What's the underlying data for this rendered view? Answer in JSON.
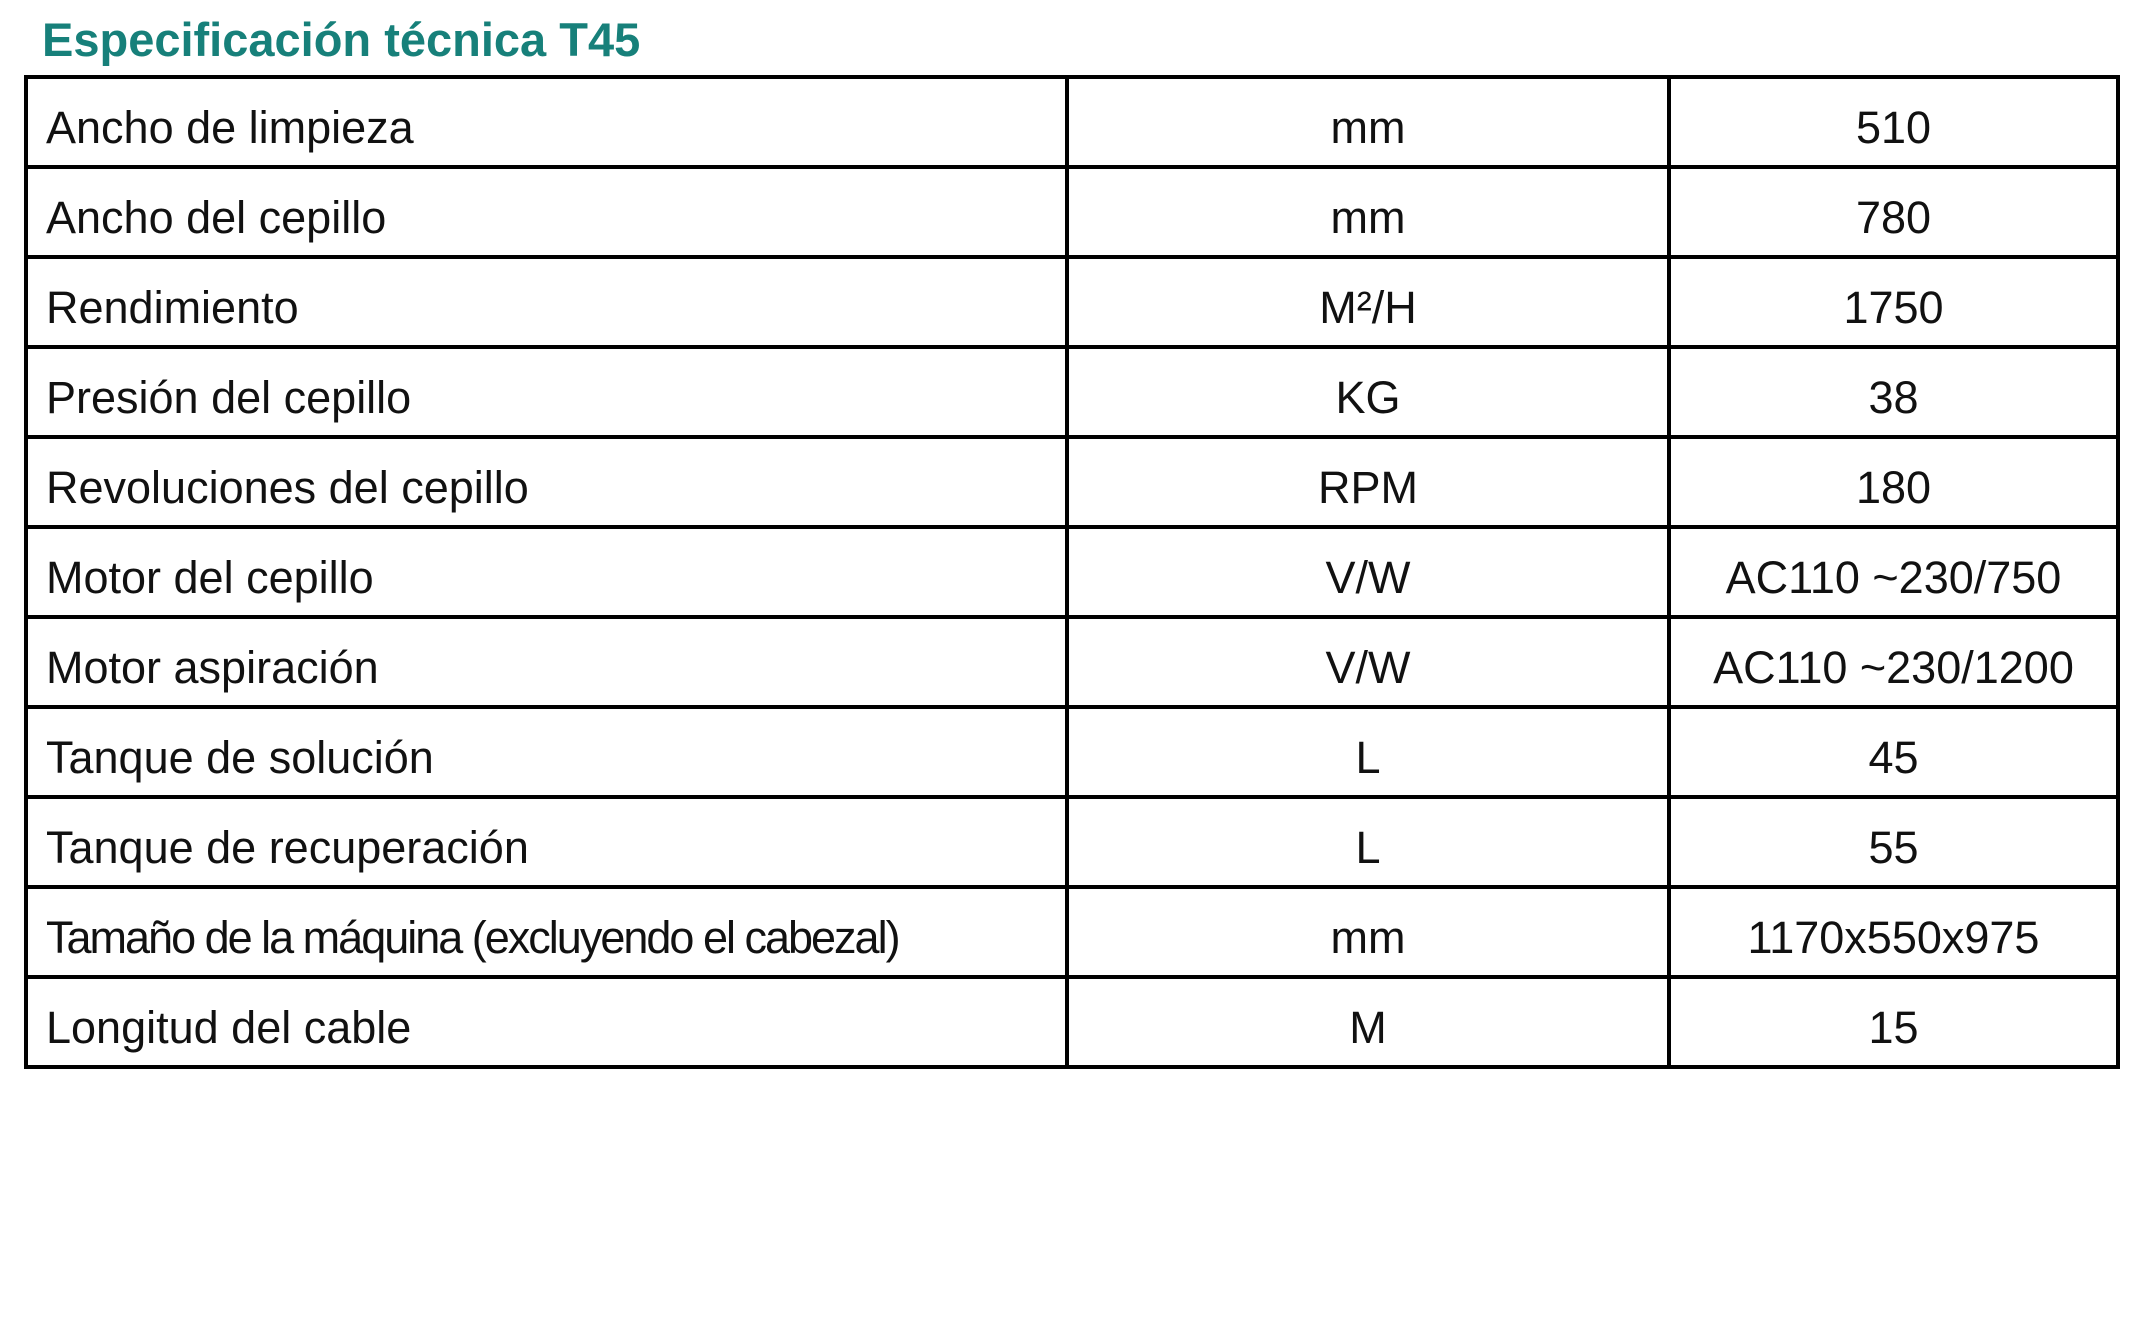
{
  "title": "Especificación técnica T45",
  "rows": [
    {
      "name": "Ancho de limpieza",
      "unit": "mm",
      "value": "510"
    },
    {
      "name": "Ancho del cepillo",
      "unit": "mm",
      "value": "780"
    },
    {
      "name": "Rendimiento",
      "unit": "M²/H",
      "value": "1750"
    },
    {
      "name": "Presión del cepillo",
      "unit": "KG",
      "value": "38"
    },
    {
      "name": "Revoluciones del cepillo",
      "unit": "RPM",
      "value": "180"
    },
    {
      "name": "Motor del cepillo",
      "unit": "V/W",
      "value": "AC110 ~230/750"
    },
    {
      "name": "Motor aspiración",
      "unit": "V/W",
      "value": "AC110 ~230/1200"
    },
    {
      "name": "Tanque de solución",
      "unit": "L",
      "value": "45"
    },
    {
      "name": "Tanque de recuperación",
      "unit": "L",
      "value": "55"
    },
    {
      "name": "Tamaño de la máquina (excluyendo el cabezal)",
      "unit": "mm",
      "value": "1170x550x975"
    },
    {
      "name": "Longitud del cable",
      "unit": "M",
      "value": "15"
    }
  ],
  "colors": {
    "title": "#17807a",
    "border": "#000000"
  }
}
